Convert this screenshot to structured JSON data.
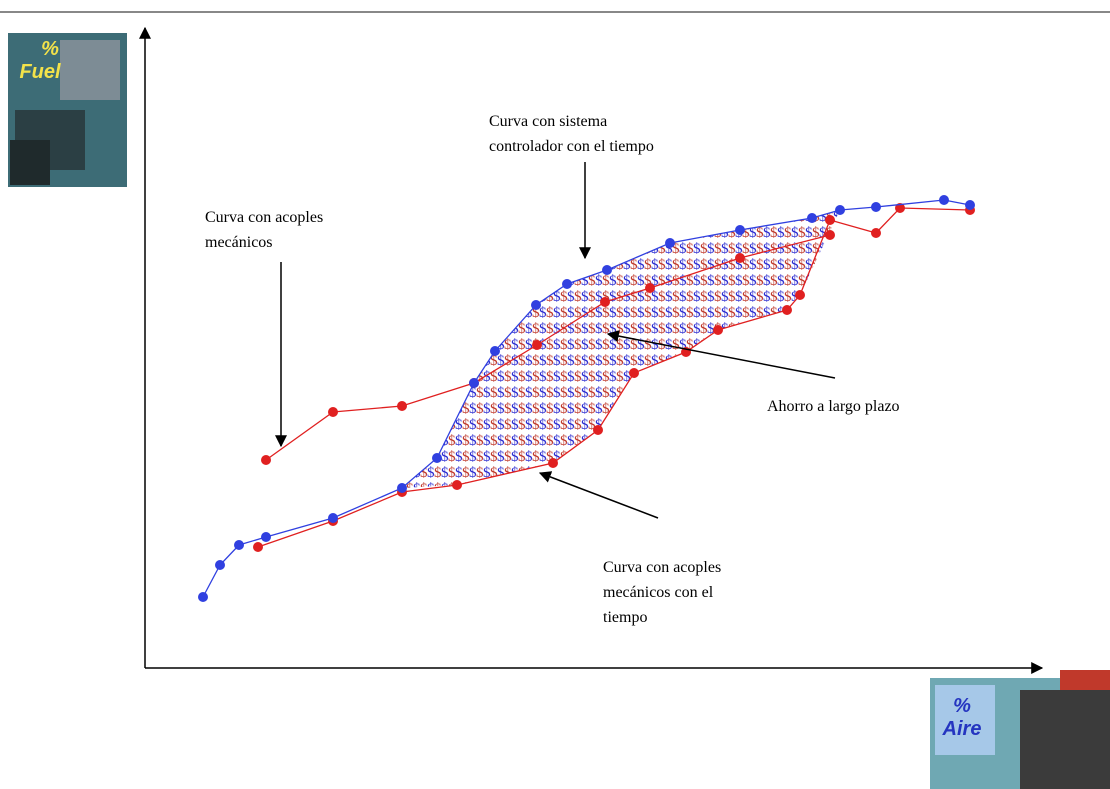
{
  "images": {
    "fuel": {
      "symbol": "%",
      "label": "Fuel"
    },
    "air": {
      "symbol": "%",
      "label": "Aire"
    }
  },
  "fill_symbol": "$",
  "annotations": [
    {
      "lines": [
        "Curva con sistema",
        "controlador con el tiempo"
      ]
    },
    {
      "lines": [
        "Curva con acoples",
        "mecánicos"
      ]
    },
    {
      "lines": [
        "Ahorro a largo plazo"
      ]
    },
    {
      "lines": [
        "Curva con acoples",
        "mecánicos con el",
        "tiempo"
      ]
    }
  ]
}
